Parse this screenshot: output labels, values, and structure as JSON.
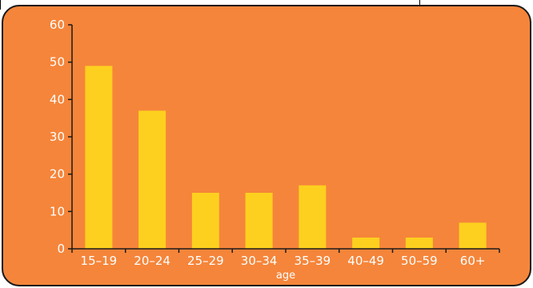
{
  "colors": {
    "panel_bg": "#F5853A",
    "bar": "#FDD01F",
    "axis": "#1a1a1a",
    "text": "#ffffff"
  },
  "chart_data": {
    "type": "bar",
    "categories": [
      "15–19",
      "20–24",
      "25–29",
      "30–34",
      "35–39",
      "40–49",
      "50–59",
      "60+"
    ],
    "values": [
      49,
      37,
      15,
      15,
      17,
      3,
      3,
      7
    ],
    "title": "",
    "xlabel": "age",
    "ylabel": "",
    "ylim": [
      0,
      60
    ],
    "yticks": [
      "0",
      "10",
      "20",
      "30",
      "40",
      "50",
      "60"
    ],
    "grid": false,
    "legend": "none"
  }
}
